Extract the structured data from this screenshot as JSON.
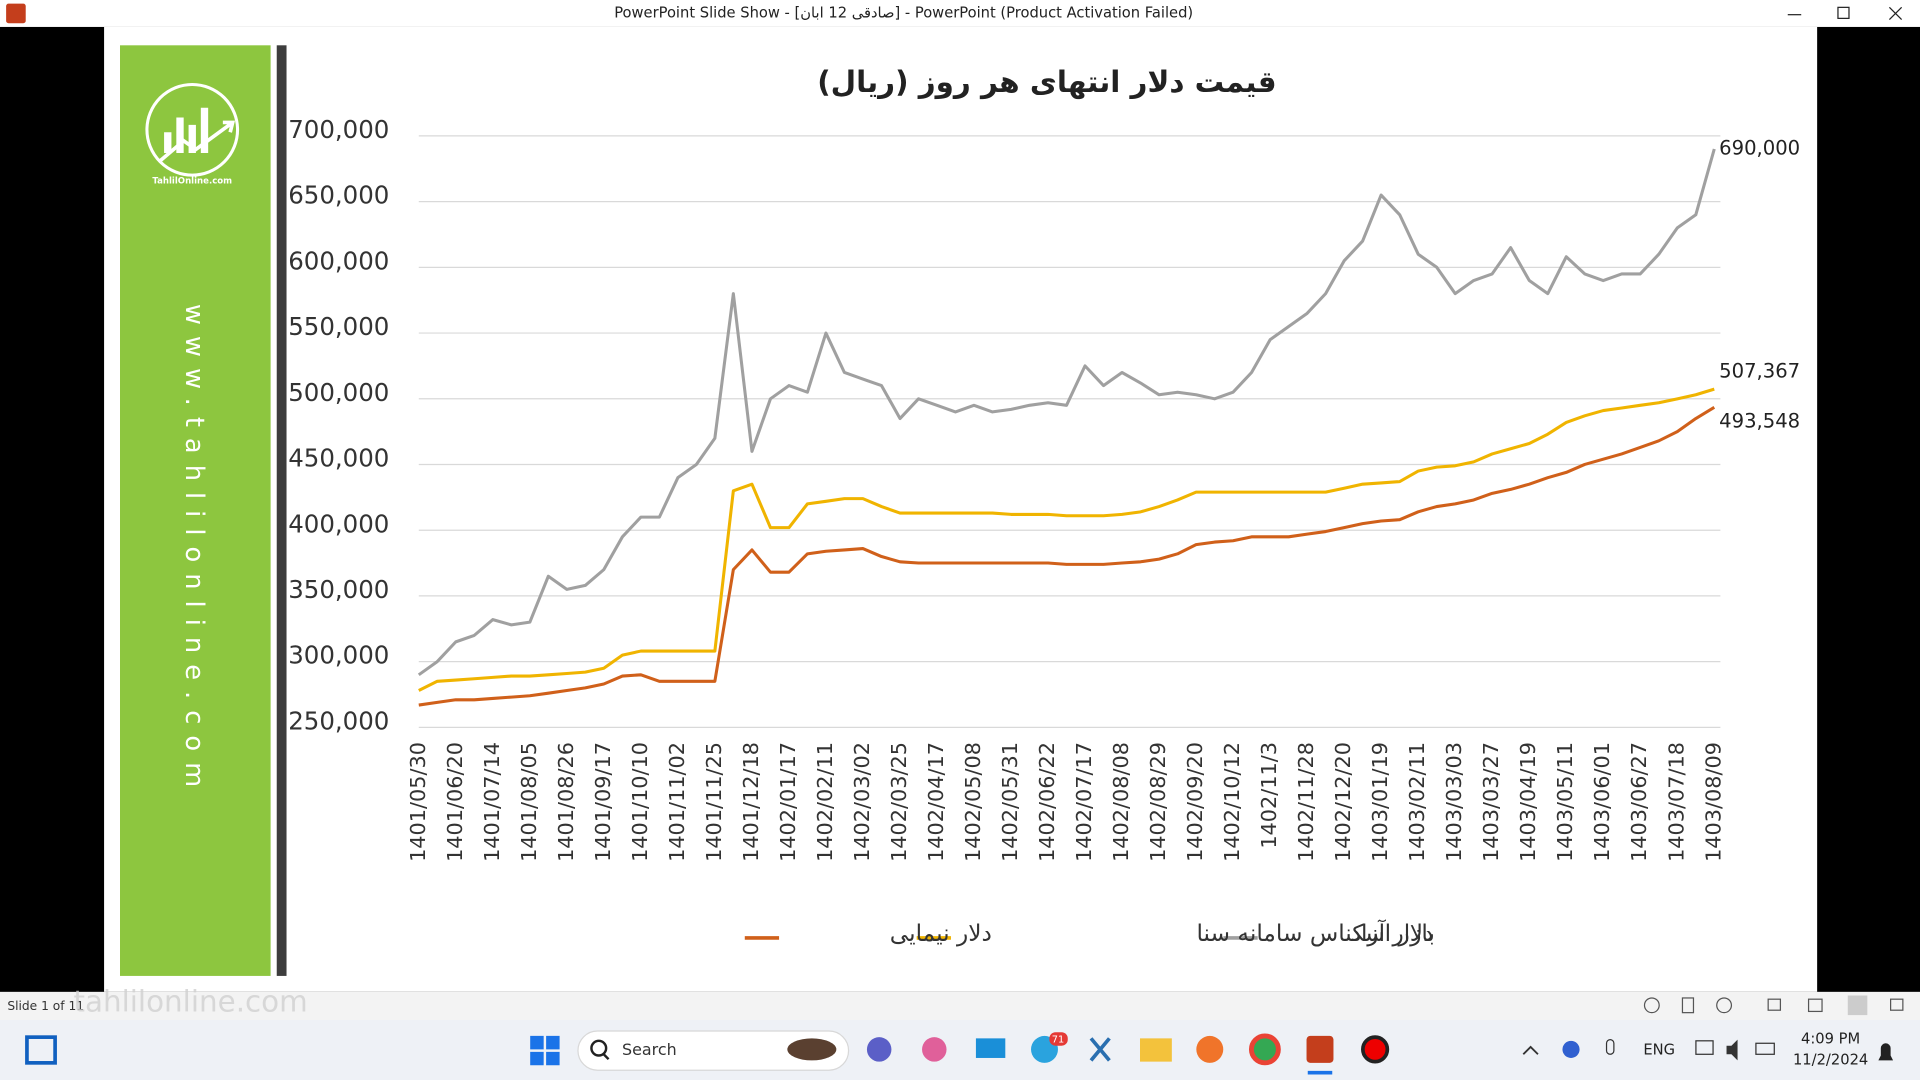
{
  "window": {
    "title": "PowerPoint Slide Show - [صادقی 12 ابان] - PowerPoint (Product Activation Failed)"
  },
  "panel": {
    "logo_text": "TahlilOnline.com",
    "url": "www.tahlilonline.com"
  },
  "status": {
    "slide": "Slide 1 of 11",
    "watermark": "tahlilonline.com"
  },
  "taskbar": {
    "search": "Search",
    "badge": "71",
    "language": "ENG",
    "time": "4:09 PM",
    "date": "11/2/2024"
  },
  "chart_data": {
    "type": "line",
    "title": "قیمت دلار انتهای هر روز (ریال)",
    "categories": [
      "1401/05/30",
      null,
      "1401/06/20",
      null,
      "1401/07/14",
      null,
      "1401/08/05",
      null,
      "1401/08/26",
      null,
      "1401/09/17",
      null,
      "1401/10/10",
      null,
      "1401/11/02",
      null,
      "1401/11/25",
      null,
      "1401/12/18",
      null,
      "1402/01/17",
      null,
      "1402/02/11",
      null,
      "1402/03/02",
      null,
      "1402/03/25",
      null,
      "1402/04/17",
      null,
      "1402/05/08",
      null,
      "1402/05/31",
      null,
      "1402/06/22",
      null,
      "1402/07/17",
      null,
      "1402/08/08",
      null,
      "1402/08/29",
      null,
      "1402/09/20",
      null,
      "1402/10/12",
      null,
      "1402/11/3",
      null,
      "1402/11/28",
      null,
      "1402/12/20",
      null,
      "1403/01/19",
      null,
      "1403/02/11",
      null,
      "1403/03/03",
      null,
      "1403/03/27",
      null,
      "1403/04/19",
      null,
      "1403/05/11",
      null,
      "1403/06/01",
      null,
      "1403/06/27",
      null,
      "1403/07/18",
      null,
      "1403/08/09"
    ],
    "series": [
      {
        "name": "بازار آزاد",
        "color": "#a0a0a0",
        "values": [
          290000,
          300000,
          315000,
          320000,
          332000,
          328000,
          330000,
          365000,
          355000,
          358000,
          370000,
          395000,
          410000,
          410000,
          440000,
          450000,
          470000,
          580000,
          460000,
          500000,
          510000,
          505000,
          550000,
          520000,
          515000,
          510000,
          485000,
          500000,
          495000,
          490000,
          495000,
          490000,
          492000,
          495000,
          497000,
          495000,
          525000,
          510000,
          520000,
          512000,
          503000,
          505000,
          503000,
          500000,
          505000,
          520000,
          545000,
          555000,
          565000,
          580000,
          605000,
          620000,
          655000,
          640000,
          610000,
          600000,
          580000,
          590000,
          595000,
          615000,
          590000,
          580000,
          608000,
          595000,
          590000,
          595000,
          595000,
          610000,
          630000,
          640000,
          690000
        ],
        "value_labels": {
          "70": "690,000"
        }
      },
      {
        "name": "دلار اسکناس سامانه سنا",
        "color": "#f0b400",
        "values": [
          278000,
          285000,
          286000,
          287000,
          288000,
          289000,
          289000,
          290000,
          291000,
          292000,
          295000,
          305000,
          308000,
          308000,
          308000,
          308000,
          308000,
          430000,
          435000,
          402000,
          402000,
          420000,
          422000,
          424000,
          424000,
          418000,
          413000,
          413000,
          413000,
          413000,
          413000,
          413000,
          412000,
          412000,
          412000,
          411000,
          411000,
          411000,
          412000,
          414000,
          418000,
          423000,
          429000,
          429000,
          429000,
          429000,
          429000,
          429000,
          429000,
          429000,
          432000,
          435000,
          436000,
          437000,
          445000,
          448000,
          449000,
          452000,
          458000,
          462000,
          466000,
          473000,
          482000,
          487000,
          491000,
          493000,
          495000,
          497000,
          500000,
          503000,
          507367
        ],
        "value_labels": {
          "70": "507,367"
        }
      },
      {
        "name": "دلار نیمایی",
        "color": "#d0601a",
        "values": [
          267000,
          269000,
          271000,
          271000,
          272000,
          273000,
          274000,
          276000,
          278000,
          280000,
          283000,
          289000,
          290000,
          285000,
          285000,
          285000,
          285000,
          370000,
          385000,
          368000,
          368000,
          382000,
          384000,
          385000,
          386000,
          380000,
          376000,
          375000,
          375000,
          375000,
          375000,
          375000,
          375000,
          375000,
          375000,
          374000,
          374000,
          374000,
          375000,
          376000,
          378000,
          382000,
          389000,
          391000,
          392000,
          395000,
          395000,
          395000,
          397000,
          399000,
          402000,
          405000,
          407000,
          408000,
          414000,
          418000,
          420000,
          423000,
          428000,
          431000,
          435000,
          440000,
          444000,
          450000,
          454000,
          458000,
          463000,
          468000,
          475000,
          485000,
          493548
        ],
        "value_labels": {
          "70": "493,548"
        }
      }
    ],
    "ylim": [
      250000,
      700000
    ],
    "yticks": [
      {
        "value": 250000,
        "label": "250,000"
      },
      {
        "value": 300000,
        "label": "300,000"
      },
      {
        "value": 350000,
        "label": "350,000"
      },
      {
        "value": 400000,
        "label": "400,000"
      },
      {
        "value": 450000,
        "label": "450,000"
      },
      {
        "value": 500000,
        "label": "500,000"
      },
      {
        "value": 550000,
        "label": "550,000"
      },
      {
        "value": 600000,
        "label": "600,000"
      },
      {
        "value": 650000,
        "label": "650,000"
      },
      {
        "value": 700000,
        "label": "700,000"
      }
    ],
    "grid": true,
    "legend": "bottom"
  }
}
